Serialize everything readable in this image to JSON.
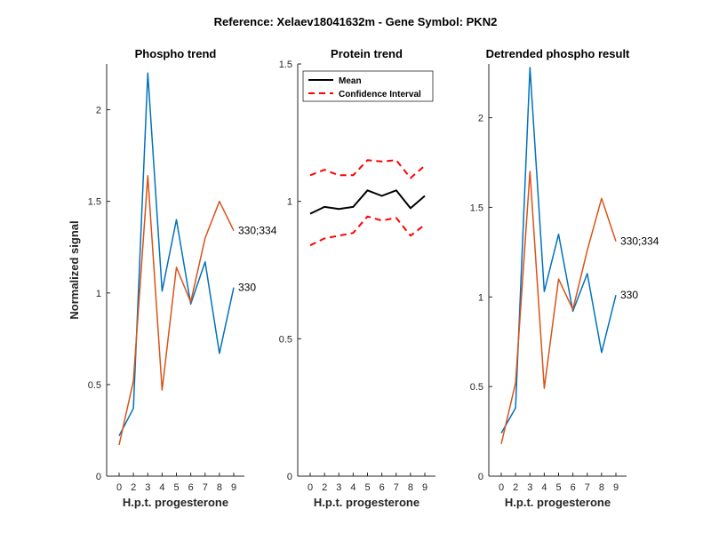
{
  "figure": {
    "suptitle": "Reference:  Xelaev18041632m - Gene Symbol:  PKN2"
  },
  "chart_data": [
    {
      "type": "line",
      "title": "Phospho trend",
      "xlabel": "H.p.t. progesterone",
      "ylabel": "Normalized signal",
      "categories": [
        "0",
        "2",
        "3",
        "4",
        "5",
        "6",
        "7",
        "8",
        "9"
      ],
      "ylim": [
        0,
        2.25
      ],
      "yticks": [
        0,
        0.5,
        1,
        1.5,
        2
      ],
      "ytick_labels": [
        "0",
        "0.5",
        "1",
        "1.5",
        "2"
      ],
      "series": [
        {
          "name": "330",
          "color": "#0072BD",
          "values": [
            0.22,
            0.37,
            2.2,
            1.01,
            1.4,
            0.94,
            1.17,
            0.67,
            1.03
          ]
        },
        {
          "name": "330;334",
          "color": "#D95319",
          "values": [
            0.17,
            0.52,
            1.64,
            0.47,
            1.14,
            0.95,
            1.3,
            1.5,
            1.34
          ]
        }
      ]
    },
    {
      "type": "line",
      "title": "Protein trend",
      "xlabel": "H.p.t. progesterone",
      "ylabel": "",
      "categories": [
        "0",
        "2",
        "3",
        "4",
        "5",
        "6",
        "7",
        "8",
        "9"
      ],
      "ylim": [
        0,
        1.5
      ],
      "yticks": [
        0,
        0.5,
        1,
        1.5
      ],
      "ytick_labels": [
        "0",
        "0.5",
        "1",
        "1.5"
      ],
      "legend": {
        "position": "top-left",
        "entries": [
          "Mean",
          "Confidence Interval"
        ]
      },
      "series": [
        {
          "name": "Mean",
          "color": "#000000",
          "style": "solid",
          "values": [
            0.955,
            0.98,
            0.972,
            0.98,
            1.04,
            1.02,
            1.04,
            0.975,
            1.02
          ]
        },
        {
          "name": "Confidence Interval",
          "color": "#FF0000",
          "style": "dashed",
          "values": [
            1.095,
            1.115,
            1.095,
            1.095,
            1.15,
            1.145,
            1.15,
            1.085,
            1.13
          ]
        },
        {
          "name": "Confidence Interval lower",
          "color": "#FF0000",
          "style": "dashed",
          "values": [
            0.84,
            0.865,
            0.875,
            0.885,
            0.945,
            0.93,
            0.94,
            0.875,
            0.915
          ]
        }
      ]
    },
    {
      "type": "line",
      "title": "Detrended phospho result",
      "xlabel": "H.p.t. progesterone",
      "ylabel": "",
      "categories": [
        "0",
        "2",
        "3",
        "4",
        "5",
        "6",
        "7",
        "8",
        "9"
      ],
      "ylim": [
        0,
        2.3
      ],
      "yticks": [
        0,
        0.5,
        1,
        1.5,
        2
      ],
      "ytick_labels": [
        "0",
        "0.5",
        "1",
        "1.5",
        "2"
      ],
      "series": [
        {
          "name": "330",
          "color": "#0072BD",
          "values": [
            0.24,
            0.38,
            2.28,
            1.03,
            1.35,
            0.92,
            1.13,
            0.69,
            1.01
          ]
        },
        {
          "name": "330;334",
          "color": "#D95319",
          "values": [
            0.18,
            0.52,
            1.7,
            0.49,
            1.1,
            0.93,
            1.26,
            1.55,
            1.31
          ]
        }
      ]
    }
  ]
}
